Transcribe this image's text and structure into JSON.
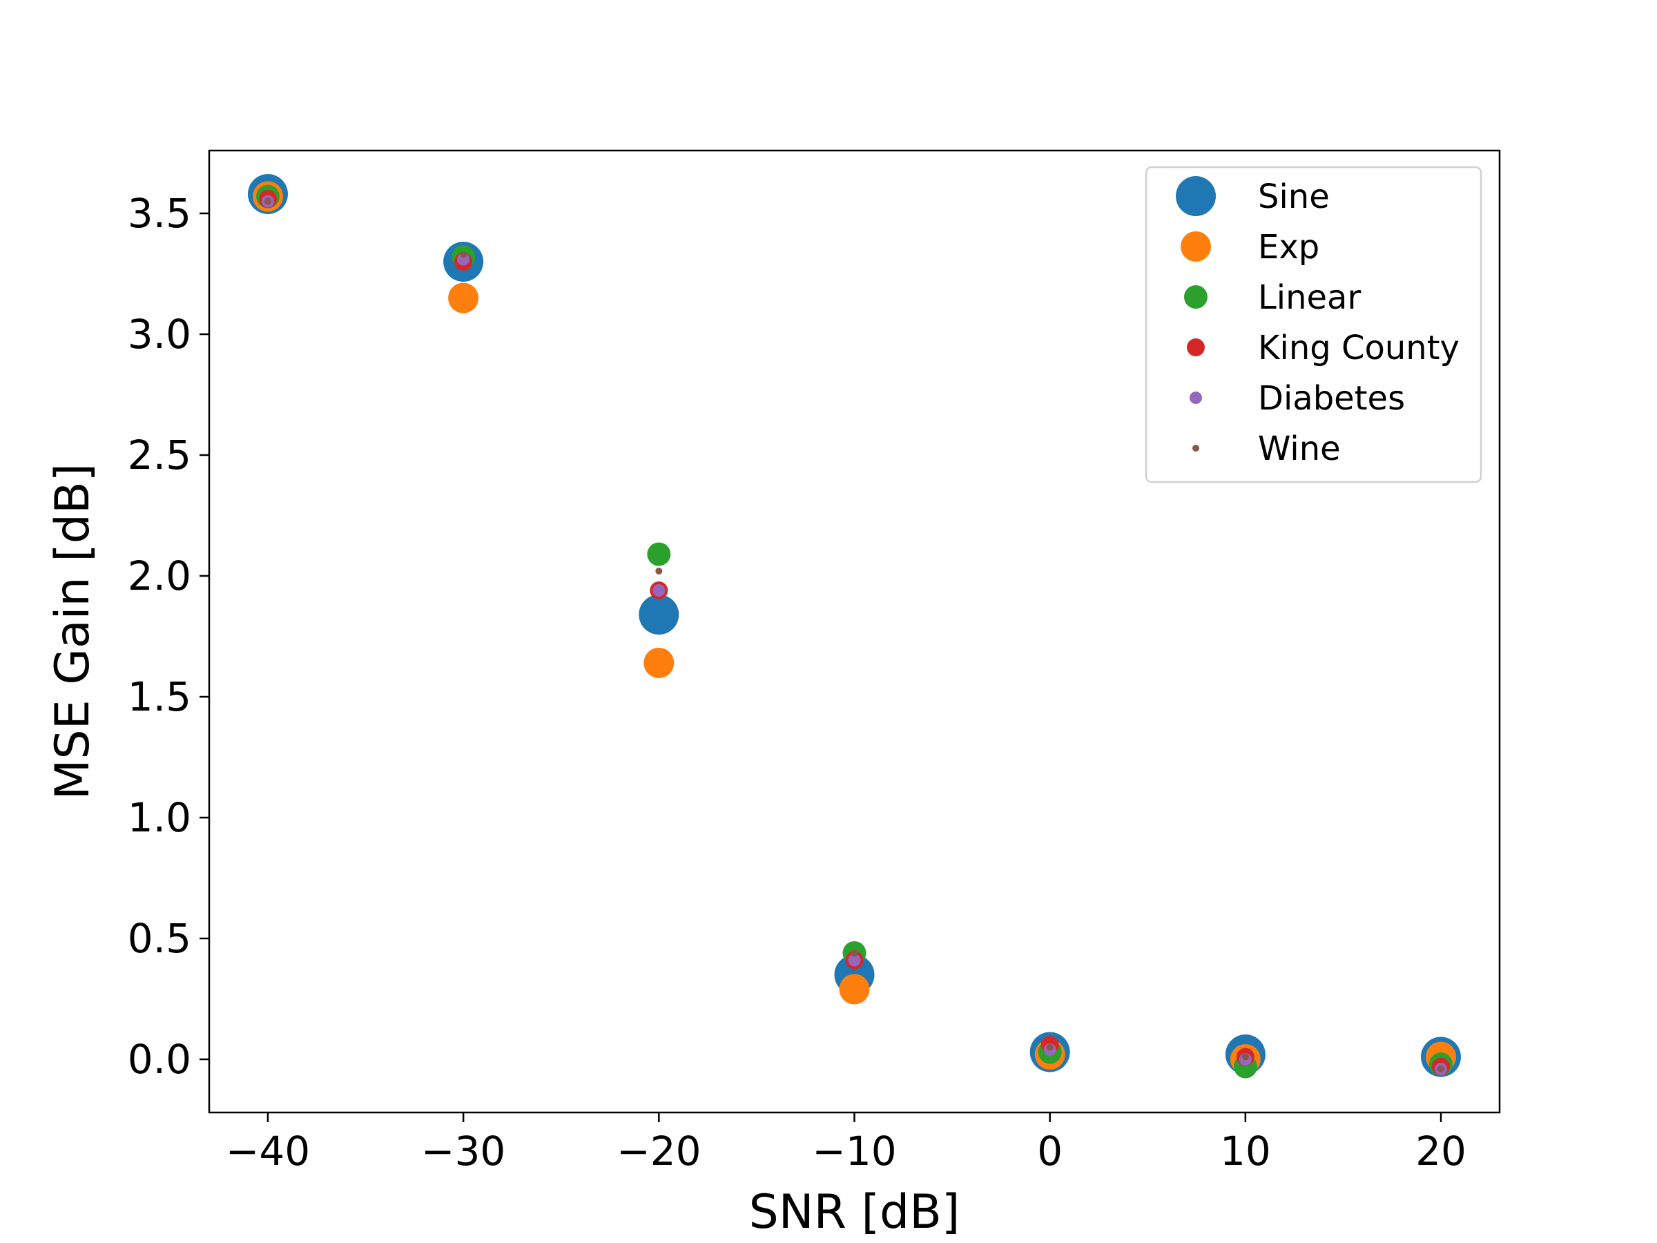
{
  "chart_data": {
    "type": "scatter",
    "title": "",
    "xlabel": "SNR [dB]",
    "ylabel": "MSE Gain [dB]",
    "xlim": [
      -43,
      23
    ],
    "ylim": [
      -0.22,
      3.76
    ],
    "xticks": [
      -40,
      -30,
      -20,
      -10,
      0,
      10,
      20
    ],
    "xtick_labels": [
      "−40",
      "−30",
      "−20",
      "−10",
      "0",
      "10",
      "20"
    ],
    "yticks": [
      0.0,
      0.5,
      1.0,
      1.5,
      2.0,
      2.5,
      3.0,
      3.5
    ],
    "ytick_labels": [
      "0.0",
      "0.5",
      "1.0",
      "1.5",
      "2.0",
      "2.5",
      "3.0",
      "3.5"
    ],
    "grid": false,
    "legend_position": "top-right",
    "x": [
      -40,
      -30,
      -20,
      -10,
      0,
      10,
      20
    ],
    "series": [
      {
        "name": "Sine",
        "color": "#1f77b4",
        "marker_size": "largest",
        "values": [
          3.58,
          3.3,
          1.84,
          0.35,
          0.03,
          0.02,
          0.01
        ]
      },
      {
        "name": "Exp",
        "color": "#ff7f0e",
        "marker_size": "large",
        "values": [
          3.57,
          3.15,
          1.64,
          0.29,
          0.02,
          0.0,
          0.01
        ]
      },
      {
        "name": "Linear",
        "color": "#2ca02c",
        "marker_size": "medium",
        "values": [
          3.57,
          3.32,
          2.09,
          0.44,
          0.03,
          -0.03,
          -0.02
        ]
      },
      {
        "name": "King County",
        "color": "#d62728",
        "marker_size": "small",
        "values": [
          3.56,
          3.3,
          1.94,
          0.41,
          0.06,
          0.01,
          -0.03
        ]
      },
      {
        "name": "Diabetes",
        "color": "#9467bd",
        "marker_size": "smaller",
        "values": [
          3.55,
          3.31,
          1.94,
          0.41,
          0.04,
          0.0,
          -0.04
        ]
      },
      {
        "name": "Wine",
        "color": "#8c564b",
        "marker_size": "smallest",
        "values": [
          3.55,
          3.33,
          2.02,
          0.44,
          0.05,
          0.01,
          -0.04
        ]
      }
    ]
  }
}
